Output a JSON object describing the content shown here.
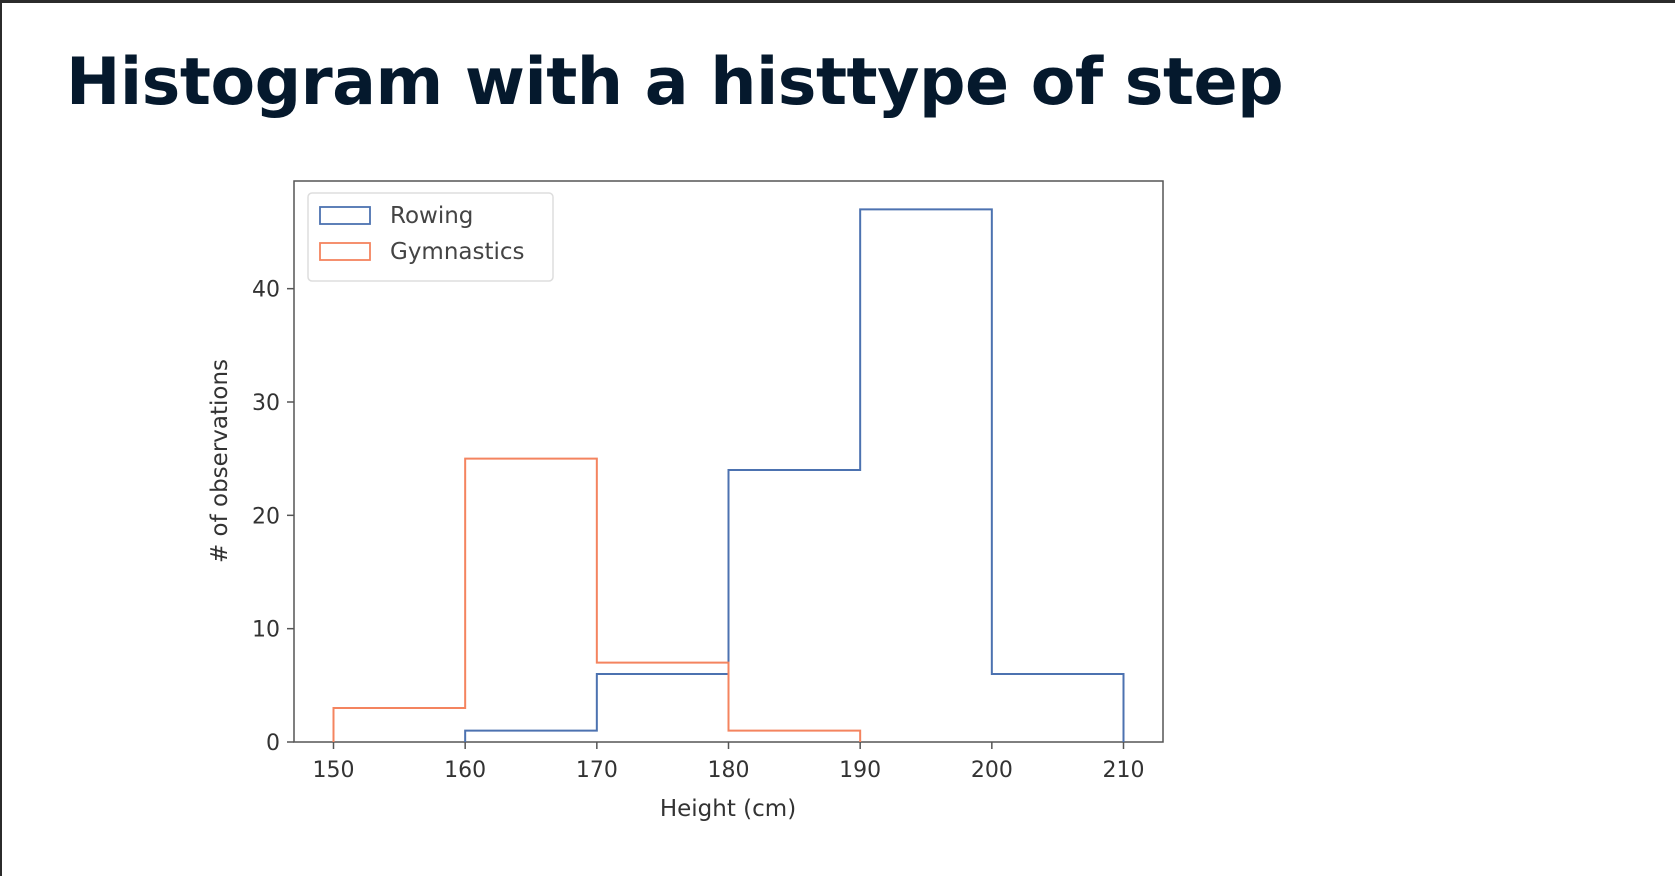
{
  "slide": {
    "title": "Histogram with a histtype of step"
  },
  "chart_data": {
    "type": "bar",
    "histtype": "step",
    "xlabel": "Height (cm)",
    "ylabel": "# of observations",
    "xlim": [
      147,
      213
    ],
    "ylim": [
      0,
      49.5
    ],
    "xticks": [
      150,
      160,
      170,
      180,
      190,
      200,
      210
    ],
    "yticks": [
      0,
      10,
      20,
      30,
      40
    ],
    "grid": false,
    "legend_position": "top-left",
    "series": [
      {
        "name": "Rowing",
        "color": "#4c72b0",
        "bin_edges": [
          160,
          170,
          180,
          190,
          200,
          210
        ],
        "values": [
          1,
          6,
          24,
          47,
          6
        ]
      },
      {
        "name": "Gymnastics",
        "color": "#f4845f",
        "bin_edges": [
          150,
          160,
          170,
          180,
          190
        ],
        "values": [
          3,
          25,
          7,
          1
        ]
      }
    ]
  }
}
